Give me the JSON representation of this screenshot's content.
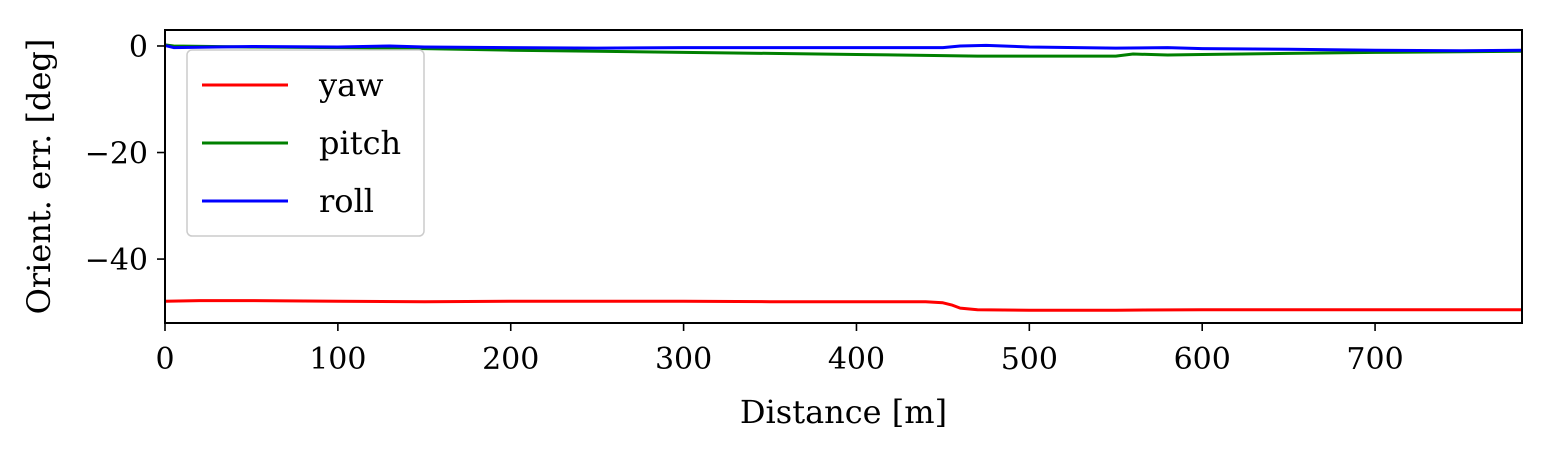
{
  "chart_data": {
    "type": "line",
    "title": "",
    "xlabel": "Distance [m]",
    "ylabel": "Orient. err. [deg]",
    "xlim": [
      0,
      785
    ],
    "ylim": [
      -52,
      3
    ],
    "xticks": [
      0,
      100,
      200,
      300,
      400,
      500,
      600,
      700
    ],
    "yticks": [
      0,
      -20,
      -40
    ],
    "xtick_labels": [
      "0",
      "100",
      "200",
      "300",
      "400",
      "500",
      "600",
      "700"
    ],
    "ytick_labels": [
      "0",
      "−20",
      "−40"
    ],
    "grid": false,
    "legend_position": "upper-left",
    "series": [
      {
        "name": "yaw",
        "color": "#ff0000",
        "x": [
          0,
          20,
          50,
          100,
          150,
          200,
          250,
          300,
          350,
          400,
          440,
          450,
          455,
          460,
          470,
          500,
          550,
          600,
          650,
          700,
          785
        ],
        "y": [
          -47.9,
          -47.8,
          -47.8,
          -47.9,
          -48.0,
          -47.9,
          -47.9,
          -47.9,
          -48.0,
          -48.0,
          -48.0,
          -48.2,
          -48.6,
          -49.2,
          -49.5,
          -49.6,
          -49.6,
          -49.5,
          -49.5,
          -49.5,
          -49.5
        ]
      },
      {
        "name": "pitch",
        "color": "#008000",
        "x": [
          0,
          5,
          50,
          100,
          150,
          200,
          250,
          300,
          350,
          400,
          450,
          470,
          500,
          550,
          560,
          580,
          600,
          650,
          700,
          750,
          785
        ],
        "y": [
          0.2,
          0.0,
          -0.2,
          -0.3,
          -0.5,
          -0.8,
          -1.0,
          -1.2,
          -1.4,
          -1.6,
          -1.8,
          -1.9,
          -1.9,
          -1.9,
          -1.5,
          -1.7,
          -1.6,
          -1.4,
          -1.2,
          -1.1,
          -1.0
        ]
      },
      {
        "name": "roll",
        "color": "#0000ff",
        "x": [
          0,
          5,
          50,
          100,
          130,
          150,
          200,
          250,
          300,
          350,
          400,
          450,
          460,
          475,
          500,
          550,
          580,
          600,
          650,
          700,
          750,
          785
        ],
        "y": [
          0.1,
          -0.3,
          -0.1,
          -0.2,
          0.0,
          -0.2,
          -0.3,
          -0.4,
          -0.3,
          -0.3,
          -0.3,
          -0.3,
          0.0,
          0.1,
          -0.2,
          -0.4,
          -0.3,
          -0.5,
          -0.6,
          -0.8,
          -0.9,
          -0.8
        ]
      }
    ]
  }
}
